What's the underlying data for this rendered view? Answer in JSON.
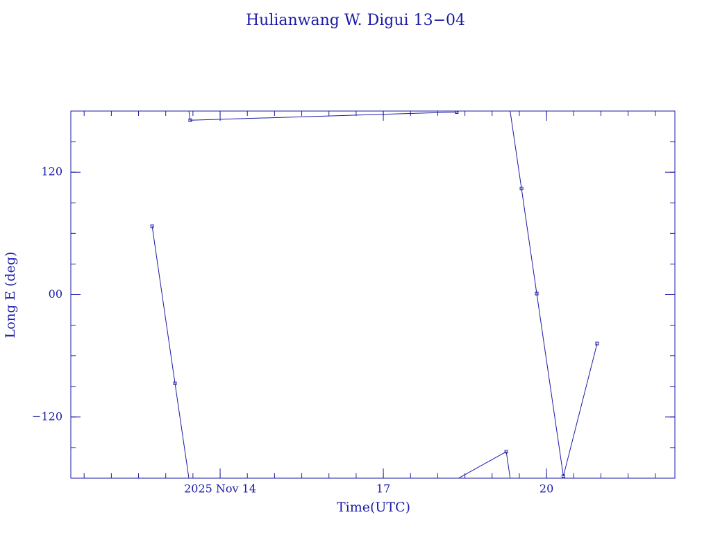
{
  "chart_data": {
    "type": "line",
    "title": "Hulianwang W. Digui 13−04",
    "xlabel": "Time(UTC)",
    "ylabel": "Long E (deg)",
    "color": "#1a1aa6",
    "xlim": [
      11.255,
      22.36
    ],
    "ylim": [
      -180,
      180
    ],
    "xticks": [
      {
        "value": 14,
        "label": "2025 Nov 14"
      },
      17,
      20
    ],
    "yticks": [
      {
        "value": -120,
        "label": "−120"
      },
      {
        "value": 0,
        "label": "00"
      },
      120
    ],
    "x": [
      12.75,
      13.17,
      13.45,
      18.35,
      19.26,
      19.54,
      19.82,
      20.31,
      20.93
    ],
    "series": [
      {
        "values": [
          67,
          -87,
          171,
          179,
          -154,
          104,
          1,
          -178,
          -48
        ]
      }
    ]
  }
}
